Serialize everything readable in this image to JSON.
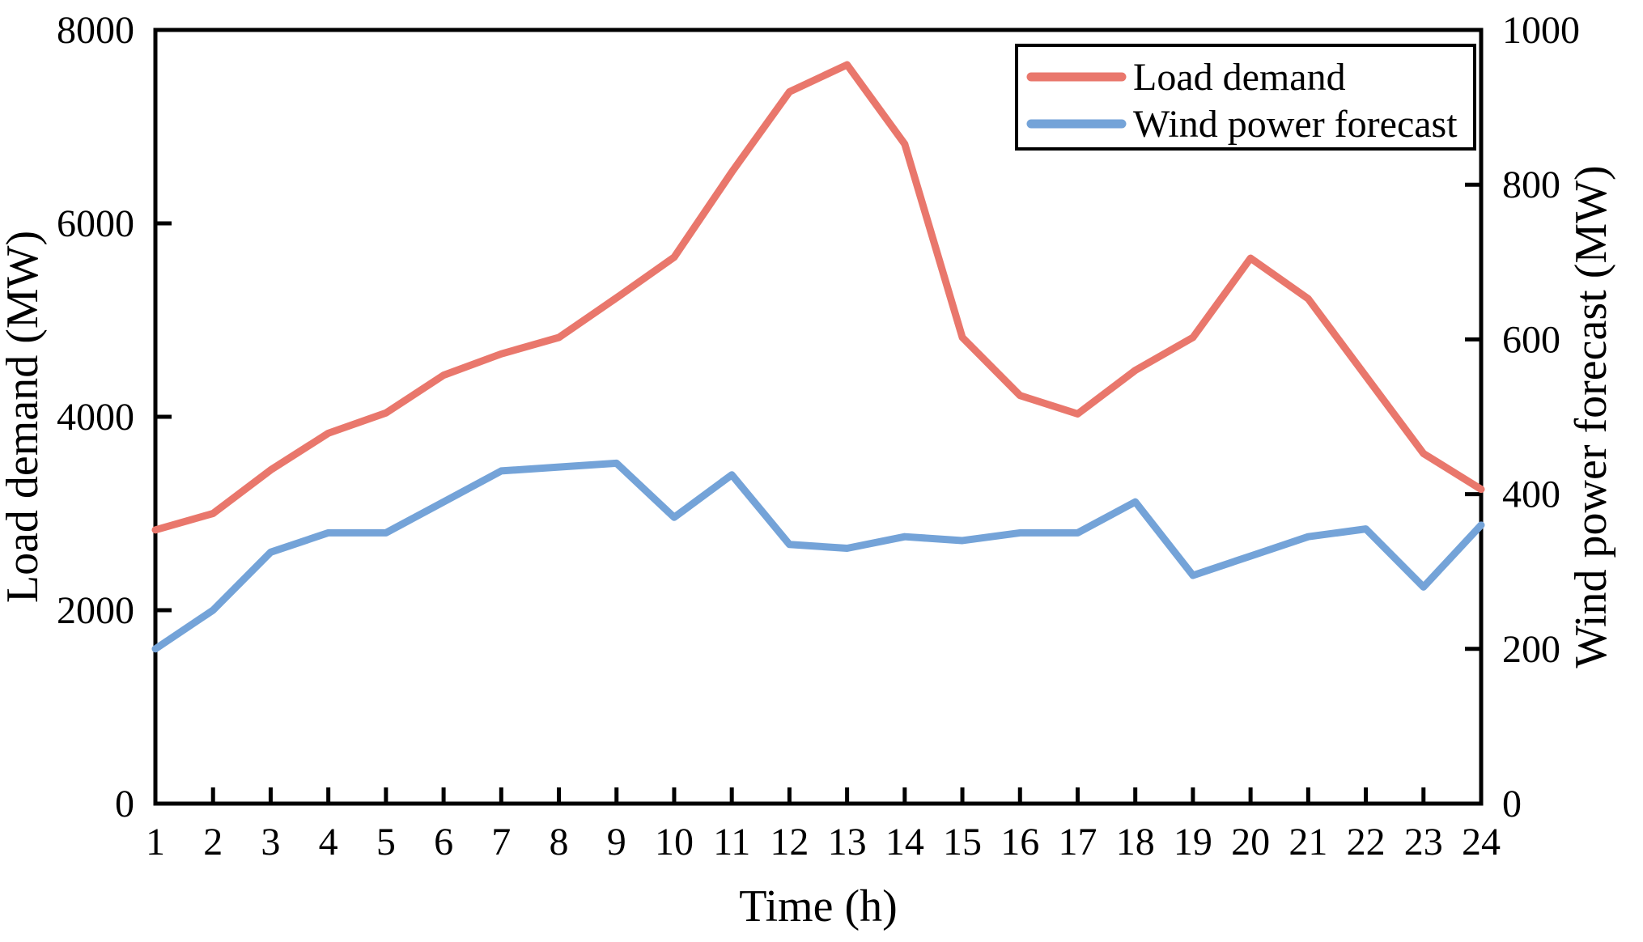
{
  "chart_data": {
    "type": "line",
    "title": "",
    "xlabel": "Time (h)",
    "x": [
      1,
      2,
      3,
      4,
      5,
      6,
      7,
      8,
      9,
      10,
      11,
      12,
      13,
      14,
      15,
      16,
      17,
      18,
      19,
      20,
      21,
      22,
      23,
      24
    ],
    "series": [
      {
        "name": "Load demand",
        "axis": "left",
        "color": "#E9776C",
        "values": [
          2830,
          3000,
          3450,
          3830,
          4040,
          4430,
          4650,
          4820,
          5230,
          5650,
          6530,
          7360,
          7640,
          6820,
          4820,
          4220,
          4030,
          4480,
          4820,
          5640,
          5220,
          4420,
          3620,
          3250
        ]
      },
      {
        "name": "Wind power forecast",
        "axis": "right",
        "color": "#74A3D8",
        "values": [
          200,
          250,
          325,
          350,
          350,
          390,
          430,
          435,
          440,
          370,
          425,
          335,
          330,
          345,
          340,
          350,
          350,
          390,
          295,
          320,
          345,
          355,
          280,
          360
        ]
      }
    ],
    "axes": {
      "left": {
        "label": "Load demand (MW)",
        "min": 0,
        "max": 8000,
        "ticks": [
          0,
          2000,
          4000,
          6000,
          8000
        ]
      },
      "right": {
        "label": "Wind power forecast (MW)",
        "min": 0,
        "max": 1000,
        "ticks": [
          0,
          200,
          400,
          600,
          800,
          1000
        ]
      },
      "x": {
        "min": 1,
        "max": 24,
        "ticks": [
          1,
          2,
          3,
          4,
          5,
          6,
          7,
          8,
          9,
          10,
          11,
          12,
          13,
          14,
          15,
          16,
          17,
          18,
          19,
          20,
          21,
          22,
          23,
          24
        ]
      }
    },
    "legend": {
      "position": "top-right",
      "entries": [
        "Load demand",
        "Wind power forecast"
      ]
    },
    "grid": false,
    "frame": true,
    "colors": {
      "axis": "#000000",
      "background": "#FFFFFF"
    }
  }
}
